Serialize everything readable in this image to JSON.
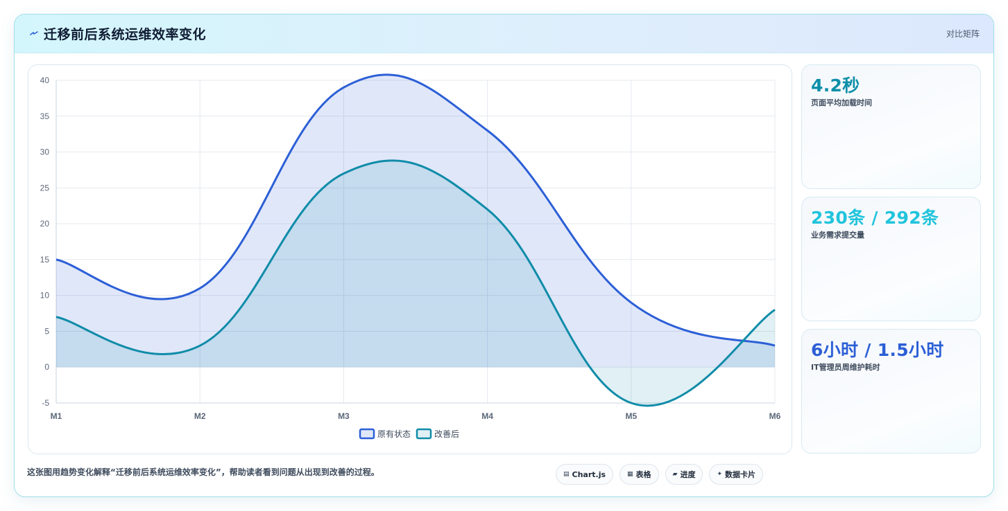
{
  "header": {
    "title": "迁移前后系统运维效率变化",
    "right_link": "对比矩阵"
  },
  "chart_data": {
    "type": "line",
    "x": [
      "M1",
      "M2",
      "M3",
      "M4",
      "M5",
      "M6"
    ],
    "ylim": [
      -5,
      40
    ],
    "yticks": [
      -5,
      0,
      5,
      10,
      15,
      20,
      25,
      30,
      35,
      40
    ],
    "grid": true,
    "legend_position": "bottom",
    "series": [
      {
        "name": "原有状态",
        "values": [
          15,
          11,
          39,
          33,
          9,
          3
        ],
        "color": "#2c5fd6",
        "fill": "rgba(44,95,214,0.15)"
      },
      {
        "name": "改善后",
        "values": [
          7,
          3,
          27,
          22,
          -5,
          8
        ],
        "color": "#0f8ca8",
        "fill": "rgba(15,140,168,0.13)"
      }
    ]
  },
  "stats": [
    {
      "value": "4.2秒",
      "label": "页面平均加载时间",
      "color": "#0e8fa8"
    },
    {
      "value": "230条 / 292条",
      "label": "业务需求提交量",
      "color": "#22c4dc"
    },
    {
      "value": "6小时 / 1.5小时",
      "label": "IT管理员周维护耗时",
      "color": "#2c5fd6"
    }
  ],
  "caption": "这张图用趋势变化解释“迁移前后系统运维效率变化”，帮助读者看到问题从出现到改善的过程。",
  "pills": [
    {
      "icon": "▤",
      "label": "Chart.js"
    },
    {
      "icon": "▦",
      "label": "表格"
    },
    {
      "icon": "▰",
      "label": "进度"
    },
    {
      "icon": "✦",
      "label": "数据卡片"
    }
  ]
}
